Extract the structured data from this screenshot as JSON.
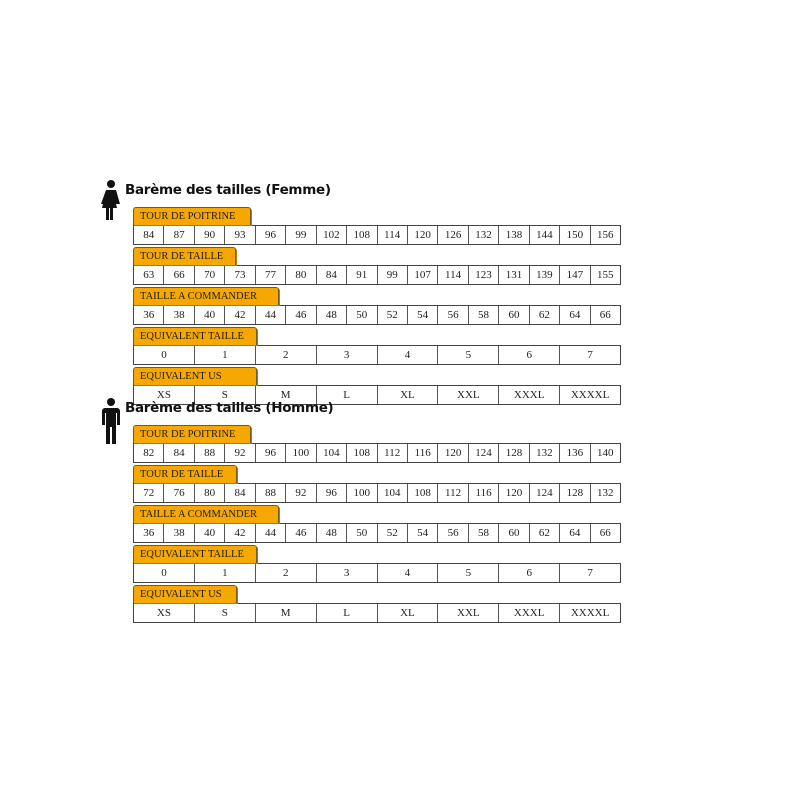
{
  "colors": {
    "label_bg": "#f7a800",
    "border": "#444444"
  },
  "sections": [
    {
      "title": "Barème des tailles (Femme)",
      "icon": "woman-icon",
      "rows": [
        {
          "label": "TOUR DE POITRINE",
          "values": [
            "84",
            "87",
            "90",
            "93",
            "96",
            "99",
            "102",
            "108",
            "114",
            "120",
            "126",
            "132",
            "138",
            "144",
            "150",
            "156"
          ]
        },
        {
          "label": "TOUR DE TAILLE",
          "values": [
            "63",
            "66",
            "70",
            "73",
            "77",
            "80",
            "84",
            "91",
            "99",
            "107",
            "114",
            "123",
            "131",
            "139",
            "147",
            "155"
          ]
        },
        {
          "label": "TAILLE A COMMANDER",
          "values": [
            "36",
            "38",
            "40",
            "42",
            "44",
            "46",
            "48",
            "50",
            "52",
            "54",
            "56",
            "58",
            "60",
            "62",
            "64",
            "66"
          ]
        },
        {
          "label": "EQUIVALENT TAILLE",
          "values": [
            "0",
            "1",
            "2",
            "3",
            "4",
            "5",
            "6",
            "7"
          ]
        },
        {
          "label": "EQUIVALENT US",
          "values": [
            "XS",
            "S",
            "M",
            "L",
            "XL",
            "XXL",
            "XXXL",
            "XXXXL"
          ]
        }
      ]
    },
    {
      "title": "Barème des tailles (Homme)",
      "icon": "man-icon",
      "rows": [
        {
          "label": "TOUR DE POITRINE",
          "values": [
            "82",
            "84",
            "88",
            "92",
            "96",
            "100",
            "104",
            "108",
            "112",
            "116",
            "120",
            "124",
            "128",
            "132",
            "136",
            "140"
          ]
        },
        {
          "label": "TOUR DE TAILLE",
          "values": [
            "72",
            "76",
            "80",
            "84",
            "88",
            "92",
            "96",
            "100",
            "104",
            "108",
            "112",
            "116",
            "120",
            "124",
            "128",
            "132"
          ]
        },
        {
          "label": "TAILLE A COMMANDER",
          "values": [
            "36",
            "38",
            "40",
            "42",
            "44",
            "46",
            "48",
            "50",
            "52",
            "54",
            "56",
            "58",
            "60",
            "62",
            "64",
            "66"
          ]
        },
        {
          "label": "EQUIVALENT TAILLE",
          "values": [
            "0",
            "1",
            "2",
            "3",
            "4",
            "5",
            "6",
            "7"
          ]
        },
        {
          "label": "EQUIVALENT US",
          "values": [
            "XS",
            "S",
            "M",
            "L",
            "XL",
            "XXL",
            "XXXL",
            "XXXXL"
          ]
        }
      ]
    }
  ]
}
